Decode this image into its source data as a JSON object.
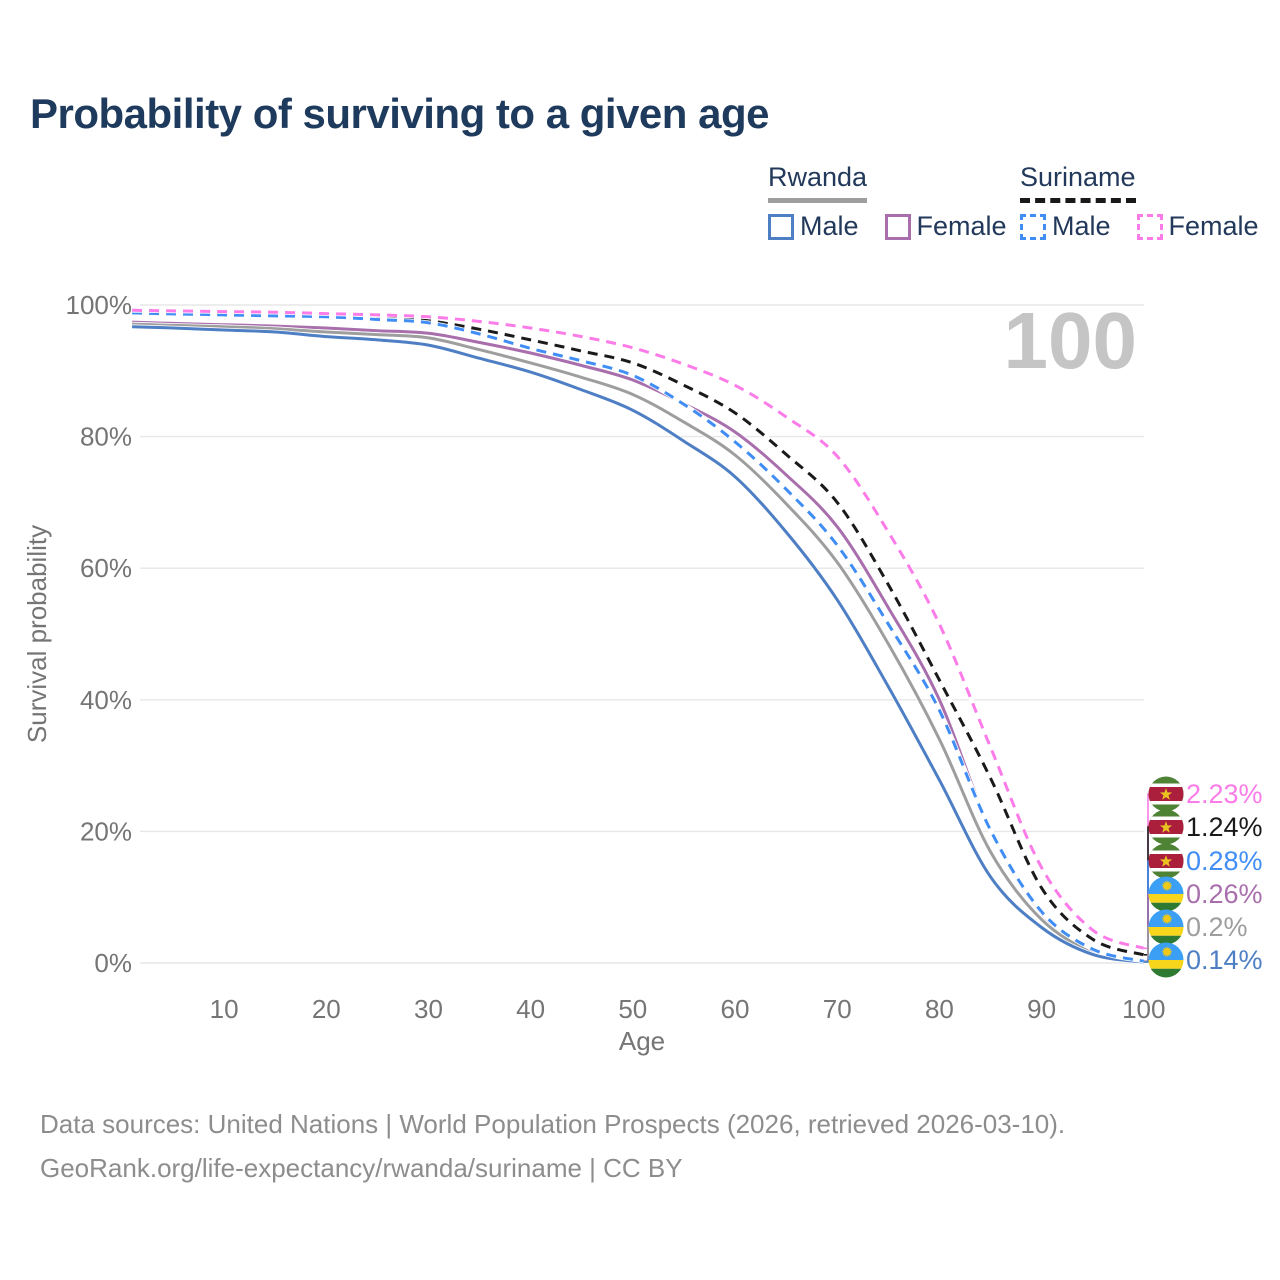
{
  "title": "Probability of surviving to a given age",
  "watermark_age": "100",
  "legend": {
    "groups": [
      {
        "country": "Rwanda",
        "line_style": "solid",
        "line_color": "#9e9e9e",
        "items": [
          {
            "label": "Male",
            "color": "#4e7fc4"
          },
          {
            "label": "Female",
            "color": "#a96fad"
          }
        ]
      },
      {
        "country": "Suriname",
        "line_style": "dashed",
        "line_color": "#191919",
        "items": [
          {
            "label": "Male",
            "color": "#3f8df5"
          },
          {
            "label": "Female",
            "color": "#fb7ce8"
          }
        ]
      }
    ]
  },
  "chart_data": {
    "type": "line",
    "title": "Probability of surviving to a given age",
    "xlabel": "Age",
    "ylabel": "Survival probability",
    "xlim": [
      1,
      100
    ],
    "ylim": [
      0,
      100
    ],
    "grid": "horizontal",
    "legend_position": "top-right",
    "x_ticks": [
      10,
      20,
      30,
      40,
      50,
      60,
      70,
      80,
      90,
      100
    ],
    "y_ticks": [
      {
        "v": 0,
        "label": "0%"
      },
      {
        "v": 20,
        "label": "20%"
      },
      {
        "v": 40,
        "label": "40%"
      },
      {
        "v": 60,
        "label": "60%"
      },
      {
        "v": 80,
        "label": "80%"
      },
      {
        "v": 100,
        "label": "100%"
      }
    ],
    "x": [
      1,
      5,
      10,
      15,
      20,
      25,
      30,
      35,
      40,
      45,
      50,
      55,
      60,
      65,
      70,
      75,
      80,
      85,
      90,
      95,
      100
    ],
    "series": [
      {
        "id": "suriname-female",
        "name": "Suriname Female",
        "country": "Suriname",
        "sex": "Female",
        "color": "#fb7ce8",
        "dashed": true,
        "flag": "suriname",
        "end_label": "2.23%",
        "values": [
          99.2,
          99.1,
          99.0,
          98.9,
          98.7,
          98.5,
          98.2,
          97.5,
          96.5,
          95.2,
          93.5,
          91.0,
          87.8,
          83.0,
          77.0,
          65.5,
          51.5,
          32.8,
          14.5,
          5.0,
          2.23
        ]
      },
      {
        "id": "suriname-both",
        "name": "Suriname Both sexes",
        "country": "Suriname",
        "sex": "Both",
        "color": "#1a1a1a",
        "dashed": true,
        "flag": "suriname",
        "end_label": "1.24%",
        "values": [
          99.0,
          98.85,
          98.7,
          98.6,
          98.4,
          98.1,
          97.6,
          96.3,
          94.7,
          93.0,
          91.2,
          87.8,
          83.6,
          77.3,
          70.0,
          57.5,
          43.0,
          28.1,
          11.4,
          3.6,
          1.24
        ]
      },
      {
        "id": "suriname-male",
        "name": "Suriname Male",
        "country": "Suriname",
        "sex": "Male",
        "color": "#3f8df5",
        "dashed": true,
        "flag": "suriname",
        "end_label": "0.28%",
        "values": [
          98.8,
          98.65,
          98.5,
          98.35,
          98.2,
          97.8,
          97.3,
          95.6,
          93.4,
          91.5,
          89.3,
          84.9,
          79.2,
          72.0,
          63.5,
          51.5,
          38.4,
          20.2,
          7.8,
          2.1,
          0.28
        ]
      },
      {
        "id": "rwanda-female",
        "name": "Rwanda Female",
        "country": "Rwanda",
        "sex": "Female",
        "color": "#a96fad",
        "dashed": false,
        "flag": "rwanda",
        "end_label": "0.26%",
        "values": [
          97.4,
          97.2,
          97.0,
          96.8,
          96.5,
          96.1,
          95.7,
          94.3,
          92.7,
          90.8,
          88.6,
          85.0,
          80.7,
          74.2,
          66.3,
          54.0,
          40.0,
          20.2,
          7.6,
          2.0,
          0.26
        ]
      },
      {
        "id": "rwanda-both",
        "name": "Rwanda Both sexes",
        "country": "Rwanda",
        "sex": "Both",
        "color": "#9e9e9e",
        "dashed": false,
        "flag": "rwanda",
        "end_label": "0.2%",
        "values": [
          97.1,
          96.9,
          96.7,
          96.4,
          95.9,
          95.5,
          95.0,
          93.2,
          91.2,
          89.0,
          86.4,
          82.2,
          77.2,
          69.8,
          60.9,
          48.5,
          34.0,
          16.9,
          6.6,
          1.7,
          0.2
        ]
      },
      {
        "id": "rwanda-male",
        "name": "Rwanda Male",
        "country": "Rwanda",
        "sex": "Male",
        "color": "#4e7fc4",
        "dashed": false,
        "flag": "rwanda",
        "end_label": "0.14%",
        "values": [
          96.7,
          96.5,
          96.2,
          95.9,
          95.2,
          94.7,
          93.9,
          91.9,
          89.8,
          87.1,
          84.0,
          79.3,
          73.9,
          65.5,
          55.2,
          42.0,
          27.8,
          13.1,
          5.4,
          1.3,
          0.14
        ]
      }
    ]
  },
  "flag_colors": {
    "suriname": {
      "green": "#4e8234",
      "white": "#ffffff",
      "red": "#ab1f3c",
      "star": "#e8c322"
    },
    "rwanda": {
      "blue": "#3ba0f5",
      "yellow": "#f7d51d",
      "green": "#2f7a32",
      "sun": "#f0c818"
    }
  },
  "footer": {
    "line1": "Data sources: United Nations | World Population Prospects (2026, retrieved 2026-03-10).",
    "line2": "GeoRank.org/life-expectancy/rwanda/suriname | CC BY"
  }
}
